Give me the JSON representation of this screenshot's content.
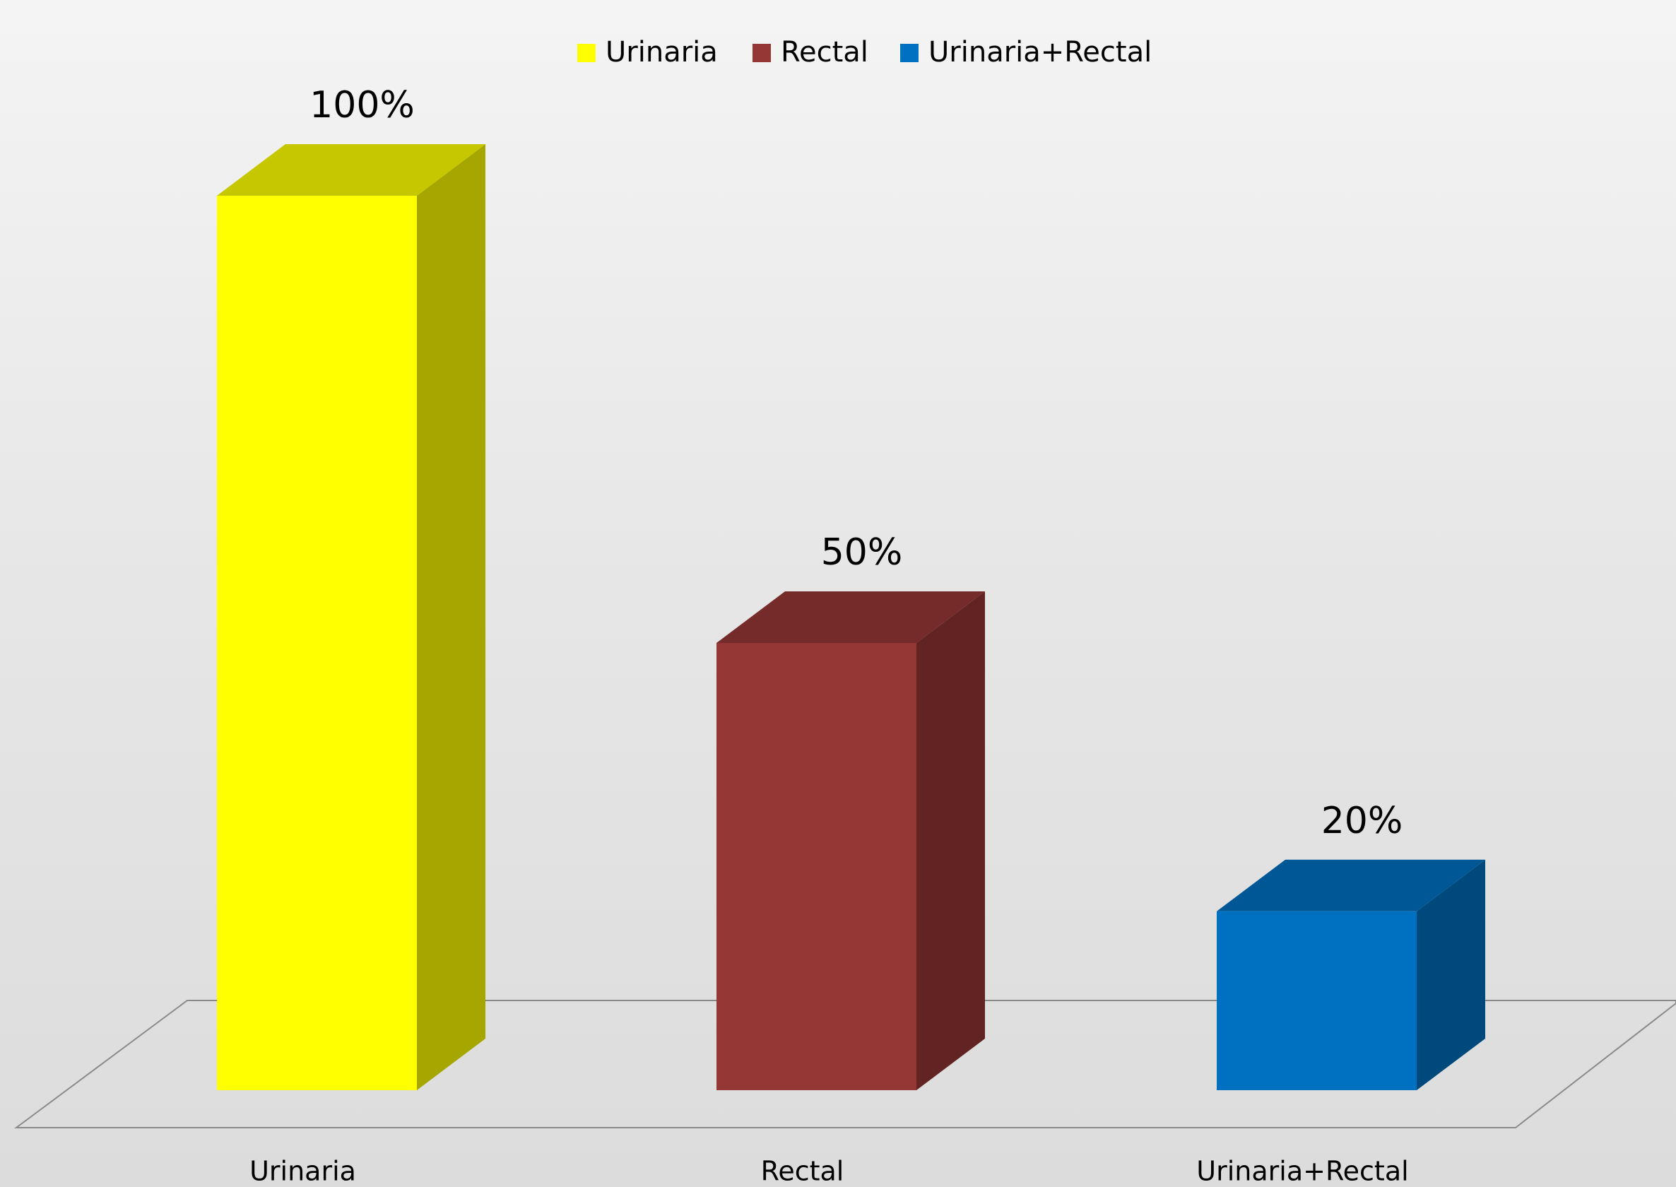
{
  "chart_data": {
    "type": "bar3d",
    "categories": [
      "Urinaria",
      "Rectal",
      "Urinaria+Rectal"
    ],
    "values": [
      100,
      50,
      20
    ],
    "value_labels": [
      "100%",
      "50%",
      "20%"
    ],
    "colors": [
      "#ffff00",
      "#953735",
      "#0070c0"
    ],
    "legend": "top"
  }
}
